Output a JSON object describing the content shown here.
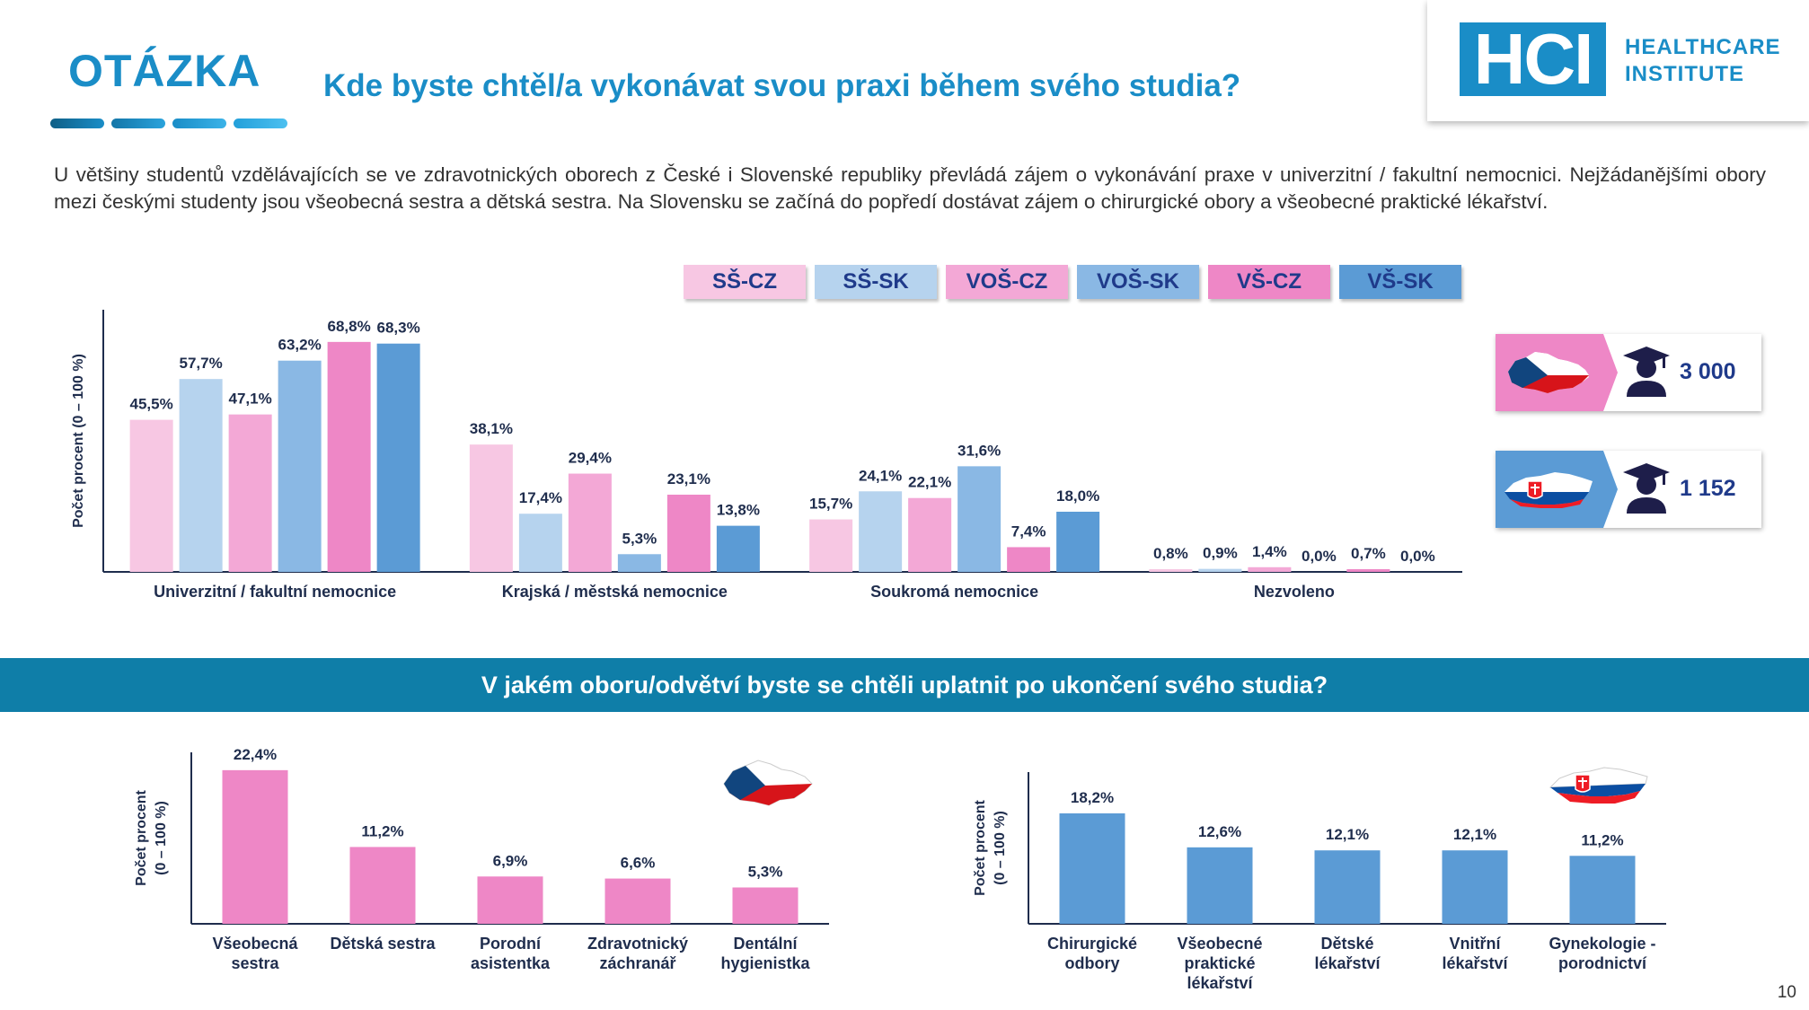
{
  "header": {
    "label": "OTÁZKA",
    "question": "Kde byste chtěl/a vykonávat svou praxi během svého studia?",
    "logo_mark": "HCI",
    "logo_line1": "HEALTHCARE",
    "logo_line2": "INSTITUTE"
  },
  "intro_text": "U většiny studentů vzdělávajících se ve zdravotnických oborech z České i Slovenské republiky převládá zájem o vykonávání praxe v univerzitní / fakultní nemocnici. Nejžádanějšími obory mezi českými studenty jsou všeobecná sestra a dětská sestra. Na Slovensku se začíná do popředí dostávat zájem o chirurgické obory a všeobecné praktické lékařství.",
  "counts": {
    "cz": {
      "value": "3 000",
      "flag": "czech-map-icon",
      "icon": "graduate-icon"
    },
    "sk": {
      "value": "1 152",
      "flag": "slovak-map-icon",
      "icon": "graduate-icon"
    }
  },
  "section2_title": "V jakém oboru/odvětví byste se chtěli uplatnit po ukončení svého studia?",
  "page_number": "10",
  "colors": {
    "brand": "#1a8dc7",
    "section_bar": "#0f7ea8",
    "cz_pink": "#ee87c6",
    "sk_blue": "#5b9bd5"
  },
  "chart_data": [
    {
      "type": "bar",
      "ylabel": "Počet procent  (0 – 100 %)",
      "categories": [
        "Univerzitní / fakultní nemocnice",
        "Krajská / městská nemocnice",
        "Soukromá nemocnice",
        "Nezvoleno"
      ],
      "legend_position": "top",
      "series": [
        {
          "name": "SŠ-CZ",
          "color": "#f7c7e3",
          "values": [
            45.5,
            38.1,
            15.7,
            0.8
          ],
          "labels": [
            "45,5%",
            "38,1%",
            "15,7%",
            "0,8%"
          ]
        },
        {
          "name": "SŠ-SK",
          "color": "#b6d3ee",
          "values": [
            57.7,
            17.4,
            24.1,
            0.9
          ],
          "labels": [
            "57,7%",
            "17,4%",
            "24,1%",
            "0,9%"
          ]
        },
        {
          "name": "VOŠ-CZ",
          "color": "#f3a8d6",
          "values": [
            47.1,
            29.4,
            22.1,
            1.4
          ],
          "labels": [
            "47,1%",
            "29,4%",
            "22,1%",
            "1,4%"
          ]
        },
        {
          "name": "VOŠ-SK",
          "color": "#8ab8e4",
          "values": [
            63.2,
            5.3,
            31.6,
            0.0
          ],
          "labels": [
            "63,2%",
            "5,3%",
            "31,6%",
            "0,0%"
          ]
        },
        {
          "name": "VŠ-CZ",
          "color": "#ee87c6",
          "values": [
            68.8,
            23.1,
            7.4,
            0.7
          ],
          "labels": [
            "68,8%",
            "23,1%",
            "7,4%",
            "0,7%"
          ]
        },
        {
          "name": "VŠ-SK",
          "color": "#5b9bd5",
          "values": [
            68.3,
            13.8,
            18.0,
            0.0
          ],
          "labels": [
            "68,3%",
            "13,8%",
            "18,0%",
            "0,0%"
          ]
        }
      ],
      "ylim": [
        0,
        80
      ],
      "grid": false
    },
    {
      "type": "bar",
      "ylabel": "Počet procent  (0 – 100 %)",
      "flag": "czech-map-icon",
      "color": "#ee87c6",
      "categories": [
        "Všeobecná sestra",
        "Dětská sestra",
        "Porodní asistentka",
        "Zdravotnický záchranář",
        "Dentální hygienistka"
      ],
      "values": [
        22.4,
        11.2,
        6.9,
        6.6,
        5.3
      ],
      "labels": [
        "22,4%",
        "11,2%",
        "6,9%",
        "6,6%",
        "5,3%"
      ],
      "ylim": [
        0,
        25
      ],
      "grid": false
    },
    {
      "type": "bar",
      "ylabel": "Počet procent  (0 – 100 %)",
      "flag": "slovak-map-icon",
      "color": "#5b9bd5",
      "categories": [
        "Chirurgické odbory",
        "Všeobecné praktické lékařství",
        "Dětské lékařství",
        "Vnitřní lékařství",
        "Gynekologie - porodnictví"
      ],
      "values": [
        18.2,
        12.6,
        12.1,
        12.1,
        11.2
      ],
      "labels": [
        "18,2%",
        "12,6%",
        "12,1%",
        "12,1%",
        "11,2%"
      ],
      "ylim": [
        0,
        25
      ],
      "grid": false
    }
  ]
}
